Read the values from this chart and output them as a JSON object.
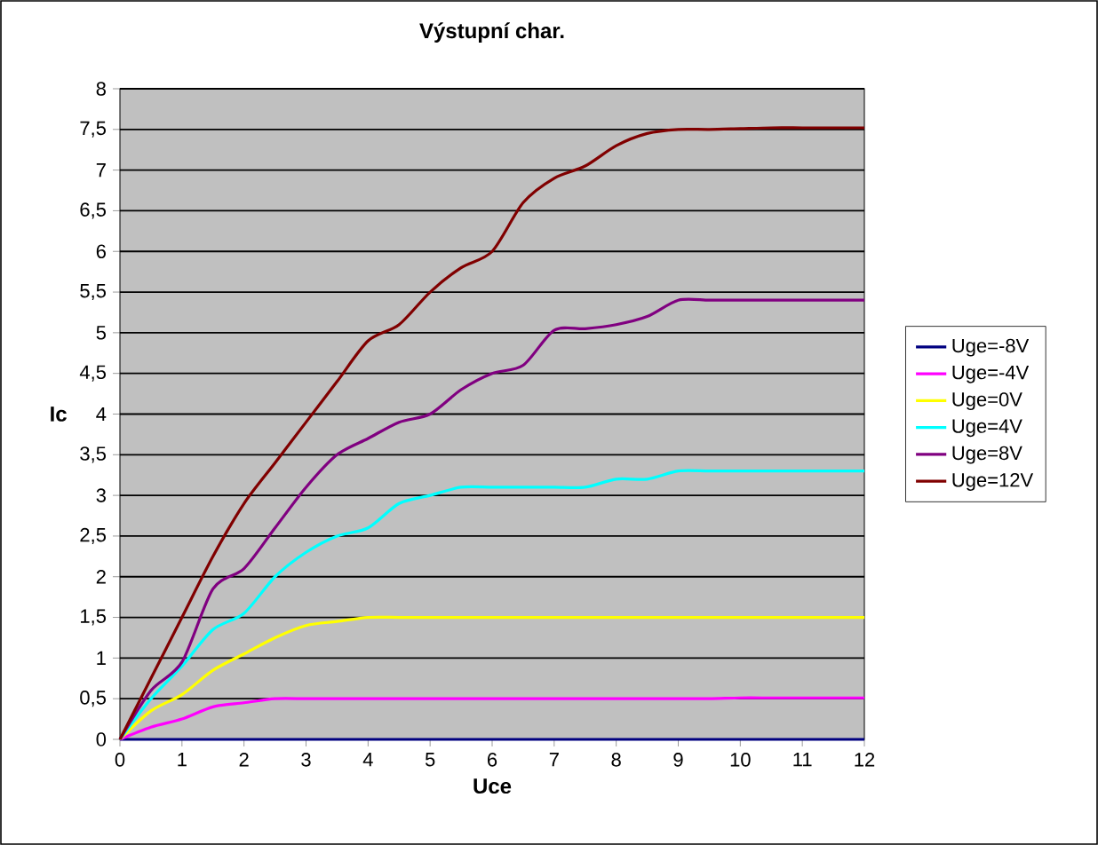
{
  "chart_data": {
    "type": "line",
    "title": "Výstupní char.",
    "xlabel": "Uce",
    "ylabel": "Ic",
    "x": [
      0,
      0.5,
      1,
      1.5,
      2,
      2.5,
      3,
      3.5,
      4,
      4.5,
      5,
      5.5,
      6,
      6.5,
      7,
      7.5,
      8,
      8.5,
      9,
      9.5,
      10,
      10.5,
      11,
      11.5,
      12
    ],
    "series": [
      {
        "name": "Uge=-8V",
        "color": "#000080",
        "values": [
          0,
          0,
          0,
          0,
          0,
          0,
          0,
          0,
          0,
          0,
          0,
          0,
          0,
          0,
          0,
          0,
          0,
          0,
          0,
          0,
          0,
          0,
          0,
          0,
          0
        ]
      },
      {
        "name": "Uge=-4V",
        "color": "#ff00ff",
        "values": [
          0,
          0.15,
          0.25,
          0.4,
          0.45,
          0.5,
          0.5,
          0.5,
          0.5,
          0.5,
          0.5,
          0.5,
          0.5,
          0.5,
          0.5,
          0.5,
          0.5,
          0.5,
          0.5,
          0.5,
          0.51,
          0.51,
          0.51,
          0.51,
          0.51
        ]
      },
      {
        "name": "Uge=0V",
        "color": "#ffff00",
        "values": [
          0,
          0.35,
          0.55,
          0.85,
          1.05,
          1.25,
          1.4,
          1.45,
          1.5,
          1.5,
          1.5,
          1.5,
          1.5,
          1.5,
          1.5,
          1.5,
          1.5,
          1.5,
          1.5,
          1.5,
          1.5,
          1.5,
          1.5,
          1.5,
          1.5
        ]
      },
      {
        "name": "Uge=4V",
        "color": "#00ffff",
        "values": [
          0,
          0.5,
          0.9,
          1.35,
          1.55,
          2.0,
          2.3,
          2.5,
          2.6,
          2.9,
          3.0,
          3.1,
          3.1,
          3.1,
          3.1,
          3.1,
          3.2,
          3.2,
          3.3,
          3.3,
          3.3,
          3.3,
          3.3,
          3.3,
          3.3
        ]
      },
      {
        "name": "Uge=8V",
        "color": "#800080",
        "values": [
          0,
          0.6,
          0.95,
          1.85,
          2.1,
          2.6,
          3.1,
          3.5,
          3.7,
          3.9,
          4.0,
          4.3,
          4.5,
          4.6,
          5.03,
          5.05,
          5.1,
          5.2,
          5.4,
          5.4,
          5.4,
          5.4,
          5.4,
          5.4,
          5.4
        ]
      },
      {
        "name": "Uge=12V",
        "color": "#800000",
        "values": [
          0,
          0.75,
          1.5,
          2.25,
          2.9,
          3.4,
          3.9,
          4.4,
          4.9,
          5.1,
          5.5,
          5.8,
          6.0,
          6.6,
          6.9,
          7.05,
          7.3,
          7.45,
          7.5,
          7.5,
          7.51,
          7.52,
          7.52,
          7.52,
          7.52
        ]
      }
    ],
    "xlim": [
      0,
      12
    ],
    "ylim": [
      0,
      8
    ],
    "xticks": [
      0,
      1,
      2,
      3,
      4,
      5,
      6,
      7,
      8,
      9,
      10,
      11,
      12
    ],
    "yticks": [
      0,
      {
        "value": 0.5,
        "label": "0,5"
      },
      1,
      {
        "value": 1.5,
        "label": "1,5"
      },
      2,
      {
        "value": 2.5,
        "label": "2,5"
      },
      3,
      {
        "value": 3.5,
        "label": "3,5"
      },
      4,
      {
        "value": 4.5,
        "label": "4,5"
      },
      5,
      {
        "value": 5.5,
        "label": "5,5"
      },
      6,
      {
        "value": 6.5,
        "label": "6,5"
      },
      7,
      {
        "value": 7.5,
        "label": "7,5"
      },
      8
    ],
    "grid": "y",
    "legend": "right",
    "marker": "none",
    "line_style": "solid"
  }
}
